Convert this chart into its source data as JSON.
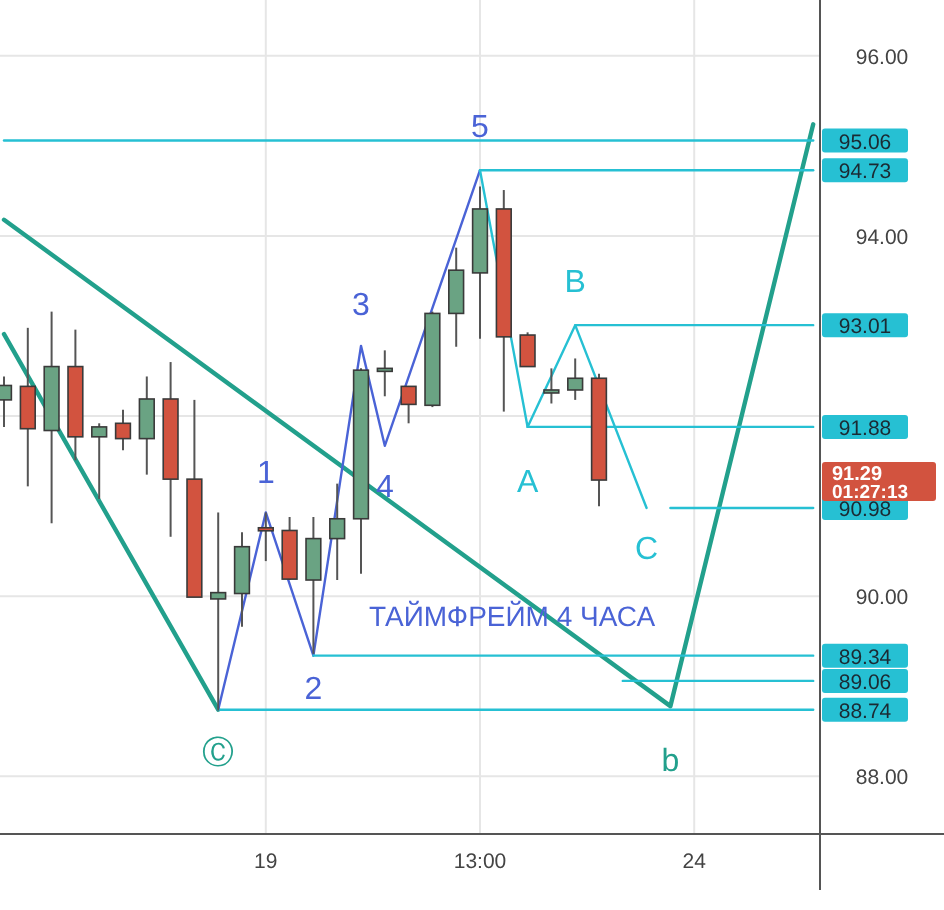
{
  "chart_data": {
    "type": "candlestick",
    "categories": [
      null,
      null,
      null,
      null,
      null,
      null,
      null,
      null,
      null,
      null,
      null,
      "19",
      null,
      null,
      null,
      null,
      null,
      null,
      null,
      null,
      "13:00",
      null,
      null,
      null,
      null,
      null,
      null,
      null,
      null,
      "24",
      null,
      null,
      null,
      null,
      null
    ],
    "ohlc": [
      [
        92.18,
        92.44,
        91.88,
        92.34
      ],
      [
        92.33,
        92.98,
        91.22,
        91.86
      ],
      [
        91.84,
        93.16,
        90.81,
        92.55
      ],
      [
        92.55,
        92.96,
        91.51,
        91.77
      ],
      [
        91.77,
        91.92,
        91.08,
        91.88
      ],
      [
        91.92,
        92.07,
        91.62,
        91.75
      ],
      [
        91.75,
        92.44,
        91.35,
        92.19
      ],
      [
        92.19,
        92.6,
        90.66,
        91.3
      ],
      [
        91.3,
        92.18,
        89.99,
        89.99
      ],
      [
        89.97,
        90.93,
        88.73,
        90.04
      ],
      [
        90.03,
        90.71,
        89.66,
        90.55
      ],
      [
        90.76,
        90.93,
        90.39,
        90.73
      ],
      [
        90.73,
        90.88,
        90.18,
        90.19
      ],
      [
        90.18,
        90.88,
        89.36,
        90.64
      ],
      [
        90.64,
        91.25,
        90.18,
        90.86
      ],
      [
        90.86,
        92.53,
        90.25,
        92.51
      ],
      [
        92.5,
        92.73,
        92.22,
        92.53
      ],
      [
        92.33,
        92.33,
        91.92,
        92.13
      ],
      [
        92.12,
        93.16,
        92.1,
        93.14
      ],
      [
        93.14,
        93.87,
        92.77,
        93.62
      ],
      [
        93.59,
        94.55,
        92.86,
        94.3
      ],
      [
        94.3,
        94.51,
        92.05,
        92.88
      ],
      [
        92.9,
        92.93,
        92.55,
        92.55
      ],
      [
        92.29,
        92.53,
        92.14,
        92.29
      ],
      [
        92.29,
        92.64,
        92.18,
        92.42
      ],
      [
        92.42,
        92.47,
        91.0,
        91.29
      ],
      null,
      null,
      null,
      null,
      null,
      null,
      null,
      null,
      null
    ],
    "colors": [
      "#6aa383",
      "#d2533f",
      "#6aa383",
      "#d2533f",
      "#6aa383",
      "#d2533f",
      "#6aa383",
      "#d2533f",
      "#d2533f",
      "#6aa383",
      "#6aa383",
      "#d2533f",
      "#d2533f",
      "#6aa383",
      "#6aa383",
      "#6aa383",
      "#6aa383",
      "#d2533f",
      "#6aa383",
      "#6aa383",
      "#6aa383",
      "#d2533f",
      "#d2533f",
      "#6aa383",
      "#6aa383",
      "#d2533f",
      null,
      null,
      null,
      null,
      null,
      null,
      null,
      null,
      null
    ],
    "series": [
      {
        "type": "line",
        "color": "#22a08c",
        "values": [
          92.91,
          null,
          null,
          null,
          null,
          null,
          null,
          null,
          null,
          88.74,
          null,
          null,
          null,
          null,
          null,
          null,
          null,
          null,
          null,
          null,
          null,
          null,
          null,
          null,
          null,
          null,
          null,
          null,
          null,
          null,
          null,
          null,
          null,
          null,
          null
        ]
      },
      {
        "type": "line",
        "color": "#22a08c",
        "values": [
          94.18,
          null,
          null,
          null,
          null,
          null,
          null,
          null,
          null,
          null,
          null,
          null,
          null,
          null,
          null,
          null,
          null,
          null,
          null,
          null,
          null,
          null,
          null,
          null,
          null,
          null,
          null,
          null,
          88.78,
          null,
          null,
          null,
          null,
          null,
          95.24
        ]
      },
      {
        "type": "line",
        "color": "#4a63d6",
        "values": [
          null,
          null,
          null,
          null,
          null,
          null,
          null,
          null,
          null,
          88.74,
          null,
          90.93,
          null,
          89.34,
          null,
          92.78,
          91.67,
          null,
          null,
          null,
          94.73,
          null,
          null,
          null,
          null,
          null,
          null,
          null,
          null,
          null,
          null,
          null,
          null,
          null,
          null
        ]
      },
      {
        "type": "line",
        "color": "#26c0d3",
        "values": [
          null,
          null,
          null,
          null,
          null,
          null,
          null,
          null,
          null,
          null,
          null,
          null,
          null,
          null,
          null,
          null,
          null,
          null,
          null,
          null,
          94.73,
          null,
          91.88,
          null,
          93.01,
          null,
          null,
          90.98,
          null,
          null,
          null,
          null,
          null,
          null,
          null
        ]
      },
      {
        "type": "line",
        "color": "#26c0d3",
        "values": [
          95.06,
          null,
          null,
          null,
          null,
          null,
          null,
          null,
          null,
          null,
          null,
          null,
          null,
          null,
          null,
          null,
          null,
          null,
          null,
          null,
          null,
          null,
          null,
          null,
          null,
          null,
          null,
          null,
          null,
          null,
          null,
          null,
          null,
          null,
          95.06
        ],
        "value_labels": [
          null,
          null,
          null,
          null,
          null,
          null,
          null,
          null,
          null,
          null,
          null,
          null,
          null,
          null,
          null,
          null,
          null,
          null,
          null,
          null,
          null,
          null,
          null,
          null,
          null,
          null,
          null,
          null,
          null,
          null,
          null,
          null,
          null,
          null,
          "95.06"
        ]
      },
      {
        "type": "line",
        "color": "#26c0d3",
        "values": [
          null,
          null,
          null,
          null,
          null,
          null,
          null,
          null,
          null,
          null,
          null,
          null,
          null,
          null,
          null,
          null,
          null,
          null,
          null,
          null,
          94.73,
          null,
          null,
          null,
          null,
          null,
          null,
          null,
          null,
          null,
          null,
          null,
          null,
          null,
          94.73
        ],
        "value_labels": [
          null,
          null,
          null,
          null,
          null,
          null,
          null,
          null,
          null,
          null,
          null,
          null,
          null,
          null,
          null,
          null,
          null,
          null,
          null,
          null,
          null,
          null,
          null,
          null,
          null,
          null,
          null,
          null,
          null,
          null,
          null,
          null,
          null,
          null,
          "94.73"
        ]
      },
      {
        "type": "line",
        "color": "#26c0d3",
        "values": [
          null,
          null,
          null,
          null,
          null,
          null,
          null,
          null,
          null,
          null,
          null,
          null,
          null,
          null,
          null,
          null,
          null,
          null,
          null,
          null,
          null,
          null,
          null,
          null,
          93.01,
          null,
          null,
          null,
          null,
          null,
          null,
          null,
          null,
          null,
          93.01
        ],
        "value_labels": [
          null,
          null,
          null,
          null,
          null,
          null,
          null,
          null,
          null,
          null,
          null,
          null,
          null,
          null,
          null,
          null,
          null,
          null,
          null,
          null,
          null,
          null,
          null,
          null,
          null,
          null,
          null,
          null,
          null,
          null,
          null,
          null,
          null,
          null,
          "93.01"
        ]
      },
      {
        "type": "line",
        "color": "#26c0d3",
        "values": [
          null,
          null,
          null,
          null,
          null,
          null,
          null,
          null,
          null,
          null,
          null,
          null,
          null,
          null,
          null,
          null,
          null,
          null,
          null,
          null,
          null,
          null,
          91.88,
          null,
          null,
          null,
          null,
          null,
          null,
          null,
          null,
          null,
          null,
          null,
          91.88
        ],
        "value_labels": [
          null,
          null,
          null,
          null,
          null,
          null,
          null,
          null,
          null,
          null,
          null,
          null,
          null,
          null,
          null,
          null,
          null,
          null,
          null,
          null,
          null,
          null,
          null,
          null,
          null,
          null,
          null,
          null,
          null,
          null,
          null,
          null,
          null,
          null,
          "91.88"
        ]
      },
      {
        "type": "line",
        "color": "#26c0d3",
        "values": [
          null,
          null,
          null,
          null,
          null,
          null,
          null,
          null,
          null,
          null,
          null,
          null,
          null,
          null,
          null,
          null,
          null,
          null,
          null,
          null,
          null,
          null,
          null,
          null,
          null,
          null,
          null,
          null,
          90.98,
          null,
          null,
          null,
          null,
          null,
          90.98
        ],
        "value_labels": [
          null,
          null,
          null,
          null,
          null,
          null,
          null,
          null,
          null,
          null,
          null,
          null,
          null,
          null,
          null,
          null,
          null,
          null,
          null,
          null,
          null,
          null,
          null,
          null,
          null,
          null,
          null,
          null,
          null,
          null,
          null,
          null,
          null,
          null,
          "90.98"
        ]
      },
      {
        "type": "line",
        "color": "#26c0d3",
        "values": [
          null,
          null,
          null,
          null,
          null,
          null,
          null,
          null,
          null,
          null,
          null,
          null,
          null,
          89.34,
          null,
          null,
          null,
          null,
          null,
          null,
          null,
          null,
          null,
          null,
          null,
          null,
          null,
          null,
          null,
          null,
          null,
          null,
          null,
          null,
          89.34
        ],
        "value_labels": [
          null,
          null,
          null,
          null,
          null,
          null,
          null,
          null,
          null,
          null,
          null,
          null,
          null,
          null,
          null,
          null,
          null,
          null,
          null,
          null,
          null,
          null,
          null,
          null,
          null,
          null,
          null,
          null,
          null,
          null,
          null,
          null,
          null,
          null,
          "89.34"
        ]
      },
      {
        "type": "line",
        "color": "#26c0d3",
        "values": [
          null,
          null,
          null,
          null,
          null,
          null,
          null,
          null,
          null,
          null,
          null,
          null,
          null,
          null,
          null,
          null,
          null,
          null,
          null,
          null,
          null,
          null,
          null,
          null,
          null,
          null,
          89.06,
          null,
          null,
          null,
          null,
          null,
          null,
          null,
          89.06
        ],
        "value_labels": [
          null,
          null,
          null,
          null,
          null,
          null,
          null,
          null,
          null,
          null,
          null,
          null,
          null,
          null,
          null,
          null,
          null,
          null,
          null,
          null,
          null,
          null,
          null,
          null,
          null,
          null,
          null,
          null,
          null,
          null,
          null,
          null,
          null,
          null,
          "89.06"
        ]
      },
      {
        "type": "line",
        "color": "#26c0d3",
        "values": [
          null,
          null,
          null,
          null,
          null,
          null,
          null,
          null,
          null,
          88.74,
          null,
          null,
          null,
          null,
          null,
          null,
          null,
          null,
          null,
          null,
          null,
          null,
          null,
          null,
          null,
          null,
          null,
          null,
          null,
          null,
          null,
          null,
          null,
          null,
          88.74
        ],
        "value_labels": [
          null,
          null,
          null,
          null,
          null,
          null,
          null,
          null,
          null,
          null,
          null,
          null,
          null,
          null,
          null,
          null,
          null,
          null,
          null,
          null,
          null,
          null,
          null,
          null,
          null,
          null,
          null,
          null,
          null,
          null,
          null,
          null,
          null,
          null,
          "88.74"
        ]
      }
    ],
    "annotations": [
      {
        "text": "Ⓒ",
        "y": 88.74
      },
      {
        "text": "1",
        "y": 90.93
      },
      {
        "text": "2",
        "y": 89.34
      },
      {
        "text": "3",
        "y": 92.78
      },
      {
        "text": "4",
        "y": 91.67
      },
      {
        "text": "5",
        "y": 94.73
      },
      {
        "text": "A",
        "y": 91.88
      },
      {
        "text": "B",
        "y": 93.01
      },
      {
        "text": "C",
        "y": 90.98
      },
      {
        "text": "b",
        "y": 88.78
      },
      "ТАЙМФРЕЙМ 4 ЧАСА",
      "91.29",
      "01:27:13"
    ],
    "ylim": [
      87.36,
      96.62
    ],
    "yticks": [
      {
        "value": 88,
        "label": "88.00"
      },
      {
        "value": 90,
        "label": "90.00"
      },
      {
        "value": 92,
        "label": null
      },
      {
        "value": 94,
        "label": "94.00"
      },
      {
        "value": 96,
        "label": "96.00"
      }
    ],
    "grid": true
  }
}
